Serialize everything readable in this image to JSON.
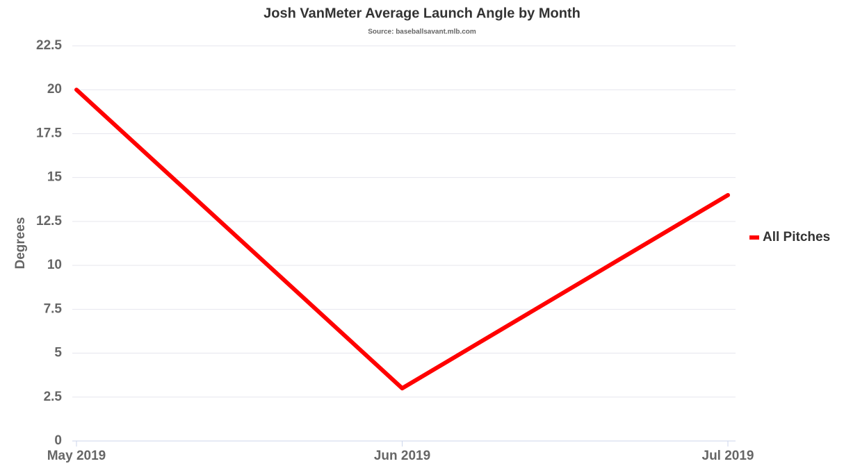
{
  "chart_data": {
    "type": "line",
    "title": "Josh VanMeter Average Launch Angle by Month",
    "subtitle": "Source: baseballsavant.mlb.com",
    "y_label": "Degrees",
    "categories": [
      "May 2019",
      "Jun 2019",
      "Jul 2019"
    ],
    "series": [
      {
        "name": "All Pitches",
        "color": "#ff0000",
        "values": [
          20,
          3,
          14
        ]
      }
    ],
    "ylim": [
      0,
      22.5
    ],
    "yticks": [
      0,
      2.5,
      5,
      7.5,
      10,
      12.5,
      15,
      17.5,
      20,
      22.5
    ],
    "grid": true,
    "legend": "right"
  }
}
